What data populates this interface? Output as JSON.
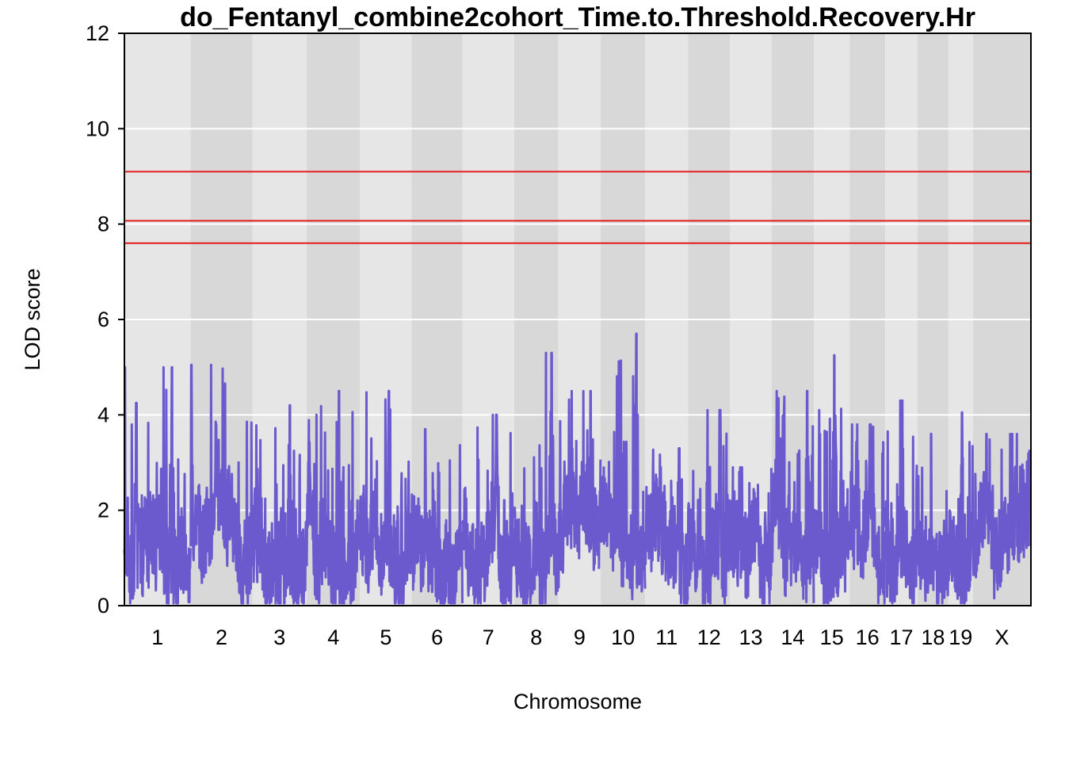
{
  "chart_data": {
    "type": "line",
    "title": "do_Fentanyl_combine2cohort_Time.to.Threshold.Recovery.Hr",
    "xlabel": "Chromosome",
    "ylabel": "LOD score",
    "ylim": [
      0,
      12
    ],
    "y_ticks": [
      0,
      2,
      4,
      6,
      8,
      10,
      12
    ],
    "grid": true,
    "chromosomes": [
      {
        "label": "1",
        "start": 0,
        "end": 195
      },
      {
        "label": "2",
        "start": 195,
        "end": 377
      },
      {
        "label": "3",
        "start": 377,
        "end": 537
      },
      {
        "label": "4",
        "start": 537,
        "end": 694
      },
      {
        "label": "5",
        "start": 694,
        "end": 846
      },
      {
        "label": "6",
        "start": 846,
        "end": 996
      },
      {
        "label": "7",
        "start": 996,
        "end": 1148
      },
      {
        "label": "8",
        "start": 1148,
        "end": 1278
      },
      {
        "label": "9",
        "start": 1278,
        "end": 1403
      },
      {
        "label": "10",
        "start": 1403,
        "end": 1534
      },
      {
        "label": "11",
        "start": 1534,
        "end": 1660
      },
      {
        "label": "12",
        "start": 1660,
        "end": 1784
      },
      {
        "label": "13",
        "start": 1784,
        "end": 1906
      },
      {
        "label": "14",
        "start": 1906,
        "end": 2031
      },
      {
        "label": "15",
        "start": 2031,
        "end": 2136
      },
      {
        "label": "16",
        "start": 2136,
        "end": 2241
      },
      {
        "label": "17",
        "start": 2241,
        "end": 2336
      },
      {
        "label": "18",
        "start": 2336,
        "end": 2427
      },
      {
        "label": "19",
        "start": 2427,
        "end": 2499
      },
      {
        "label": "X",
        "start": 2499,
        "end": 2670
      }
    ],
    "thresholds": [
      9.1,
      8.07,
      7.6
    ],
    "threshold_color": "#e41a1c",
    "series": [
      {
        "color": "#6a5acd",
        "peaks": [
          {
            "chr": "1",
            "pos": 35,
            "lod": 4.25
          },
          {
            "chr": "1",
            "pos": 140,
            "lod": 5.0
          },
          {
            "chr": "2",
            "pos": 2,
            "lod": 5.05
          },
          {
            "chr": "2",
            "pos": 75,
            "lod": 3.8
          },
          {
            "chr": "3",
            "pos": 110,
            "lod": 4.2
          },
          {
            "chr": "4",
            "pos": 95,
            "lod": 4.5
          },
          {
            "chr": "5",
            "pos": 85,
            "lod": 4.5
          },
          {
            "chr": "6",
            "pos": 40,
            "lod": 3.7
          },
          {
            "chr": "7",
            "pos": 100,
            "lod": 4.0
          },
          {
            "chr": "8",
            "pos": 110,
            "lod": 5.3
          },
          {
            "chr": "9",
            "pos": 95,
            "lod": 4.5
          },
          {
            "chr": "10",
            "pos": 105,
            "lod": 5.7
          },
          {
            "chr": "11",
            "pos": 100,
            "lod": 3.3
          },
          {
            "chr": "12",
            "pos": 95,
            "lod": 4.1
          },
          {
            "chr": "13",
            "pos": 30,
            "lod": 2.9
          },
          {
            "chr": "14",
            "pos": 20,
            "lod": 4.35
          },
          {
            "chr": "14",
            "pos": 105,
            "lod": 4.5
          },
          {
            "chr": "15",
            "pos": 60,
            "lod": 5.25
          },
          {
            "chr": "16",
            "pos": 60,
            "lod": 3.8
          },
          {
            "chr": "17",
            "pos": 50,
            "lod": 4.3
          },
          {
            "chr": "18",
            "pos": 40,
            "lod": 3.6
          },
          {
            "chr": "19",
            "pos": 40,
            "lod": 4.05
          },
          {
            "chr": "X",
            "pos": 40,
            "lod": 3.6
          }
        ]
      }
    ]
  }
}
